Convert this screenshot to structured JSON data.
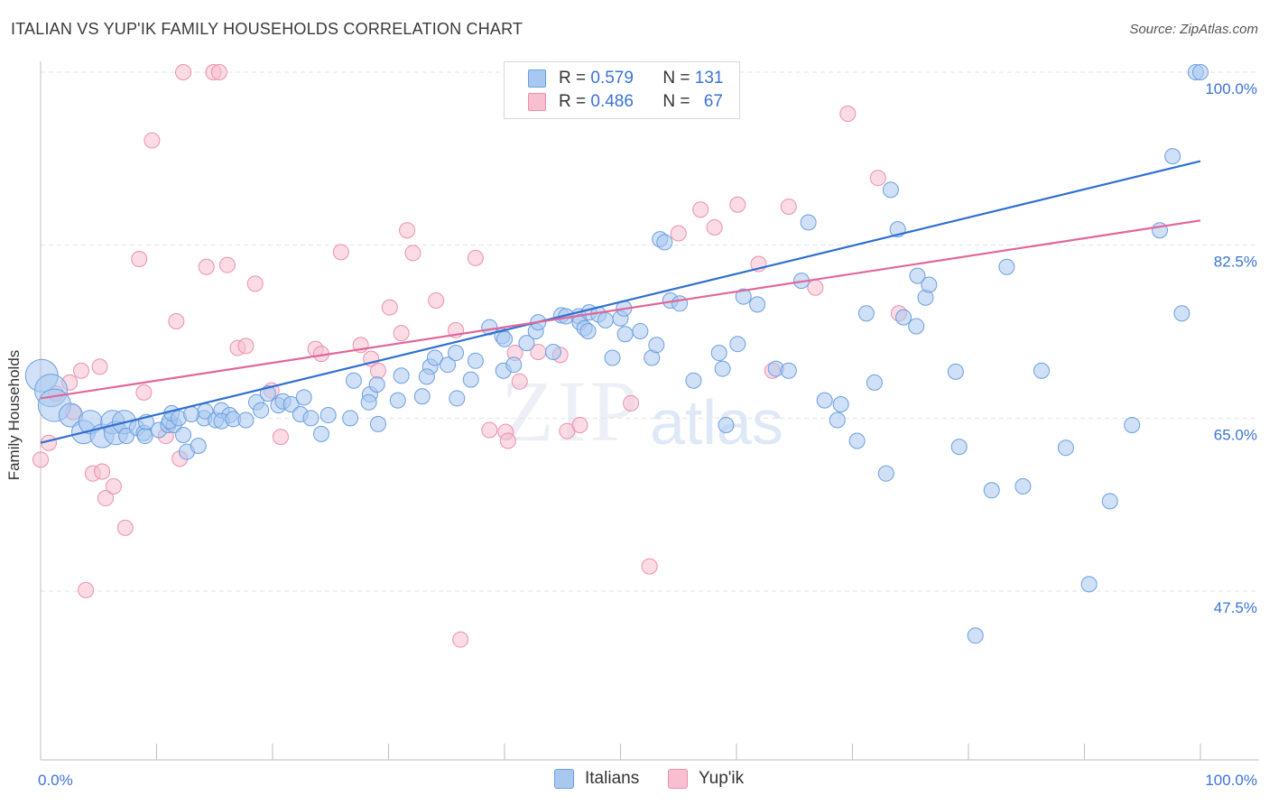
{
  "title": "ITALIAN VS YUP'IK FAMILY HOUSEHOLDS CORRELATION CHART",
  "source": "Source: ZipAtlas.com",
  "watermark": {
    "zip": "ZIP",
    "atlas": "atlas"
  },
  "legend": {
    "italians": {
      "r_label": "R =",
      "r_value": "0.579",
      "n_label": "N =",
      "n_value": "131"
    },
    "yupik": {
      "r_label": "R =",
      "r_value": "0.486",
      "n_label": "N =",
      "n_value": "67"
    }
  },
  "bottom_legend": {
    "italians": "Italians",
    "yupik": "Yup'ik"
  },
  "colors": {
    "italians_fill": "#a9c8f0",
    "italians_stroke": "#6a9fe0",
    "italians_line": "#2f6fd0",
    "yupik_fill": "#f7bfd0",
    "yupik_stroke": "#ec8fae",
    "yupik_line": "#e0679a",
    "tick_label": "#3b73d6",
    "grid": "#e3e3e3"
  },
  "chart_data": {
    "type": "scatter",
    "title": "ITALIAN VS YUP'IK FAMILY HOUSEHOLDS CORRELATION CHART",
    "xlabel": "",
    "ylabel": "Family Households",
    "xlim": [
      0,
      100
    ],
    "ylim": [
      32.5,
      102.5
    ],
    "x_tick_labels": [
      "0.0%",
      "100.0%"
    ],
    "y_ticks": [
      47.5,
      65.0,
      82.5,
      100.0
    ],
    "y_tick_labels": [
      "47.5%",
      "65.0%",
      "82.5%",
      "100.0%"
    ],
    "grid": true,
    "legend_position": "top-center",
    "series": [
      {
        "name": "Italians",
        "trend": {
          "x": [
            0,
            100
          ],
          "y": [
            62.5,
            91.0
          ]
        },
        "points": [
          [
            0.1,
            69.3
          ],
          [
            0.9,
            67.8
          ],
          [
            1.2,
            66.3
          ],
          [
            2.6,
            65.3
          ],
          [
            3.7,
            63.6
          ],
          [
            4.3,
            64.6
          ],
          [
            5.3,
            63.2
          ],
          [
            6.2,
            64.6
          ],
          [
            6.5,
            63.5
          ],
          [
            7.2,
            64.6
          ],
          [
            7.4,
            63.2
          ],
          [
            8.3,
            64.0
          ],
          [
            8.9,
            63.5
          ],
          [
            9.0,
            63.2
          ],
          [
            9.1,
            64.6
          ],
          [
            10.2,
            63.8
          ],
          [
            11.0,
            64.3
          ],
          [
            11.5,
            64.3
          ],
          [
            12.3,
            63.3
          ],
          [
            12.6,
            61.6
          ],
          [
            11.1,
            64.7
          ],
          [
            11.3,
            65.5
          ],
          [
            14.1,
            65.0
          ],
          [
            14.2,
            65.7
          ],
          [
            11.9,
            65.0
          ],
          [
            13.0,
            65.4
          ],
          [
            13.6,
            62.2
          ],
          [
            15.1,
            64.8
          ],
          [
            15.6,
            65.8
          ],
          [
            16.3,
            65.3
          ],
          [
            15.6,
            64.7
          ],
          [
            16.6,
            64.9
          ],
          [
            17.7,
            64.8
          ],
          [
            18.6,
            66.6
          ],
          [
            19.0,
            65.8
          ],
          [
            19.6,
            67.5
          ],
          [
            20.5,
            66.3
          ],
          [
            20.9,
            66.7
          ],
          [
            21.6,
            66.4
          ],
          [
            22.4,
            65.4
          ],
          [
            22.7,
            67.1
          ],
          [
            23.3,
            65.0
          ],
          [
            24.2,
            63.4
          ],
          [
            24.8,
            65.3
          ],
          [
            26.7,
            65.0
          ],
          [
            27.0,
            68.8
          ],
          [
            28.4,
            67.4
          ],
          [
            29.0,
            68.4
          ],
          [
            28.3,
            66.6
          ],
          [
            29.1,
            64.4
          ],
          [
            30.8,
            66.8
          ],
          [
            31.1,
            69.3
          ],
          [
            32.9,
            67.2
          ],
          [
            33.6,
            70.2
          ],
          [
            33.3,
            69.2
          ],
          [
            34.0,
            71.1
          ],
          [
            35.1,
            70.4
          ],
          [
            35.8,
            71.6
          ],
          [
            35.9,
            67.0
          ],
          [
            37.1,
            68.9
          ],
          [
            37.5,
            70.8
          ],
          [
            38.7,
            74.2
          ],
          [
            39.8,
            73.3
          ],
          [
            40.0,
            73.0
          ],
          [
            39.9,
            69.8
          ],
          [
            40.8,
            70.4
          ],
          [
            41.9,
            72.6
          ],
          [
            42.7,
            73.8
          ],
          [
            42.9,
            74.7
          ],
          [
            44.2,
            71.7
          ],
          [
            44.9,
            75.4
          ],
          [
            45.3,
            75.3
          ],
          [
            46.4,
            75.3
          ],
          [
            46.5,
            74.7
          ],
          [
            46.9,
            74.1
          ],
          [
            47.2,
            73.8
          ],
          [
            47.3,
            75.7
          ],
          [
            48.1,
            75.5
          ],
          [
            48.7,
            74.9
          ],
          [
            49.3,
            71.1
          ],
          [
            50.0,
            75.1
          ],
          [
            50.3,
            76.1
          ],
          [
            50.4,
            73.5
          ],
          [
            51.7,
            73.8
          ],
          [
            52.7,
            71.1
          ],
          [
            53.1,
            72.4
          ],
          [
            53.4,
            83.1
          ],
          [
            53.8,
            82.8
          ],
          [
            54.3,
            76.9
          ],
          [
            55.1,
            76.6
          ],
          [
            56.3,
            68.8
          ],
          [
            58.5,
            71.6
          ],
          [
            58.8,
            70.0
          ],
          [
            59.1,
            64.3
          ],
          [
            60.1,
            72.5
          ],
          [
            60.6,
            77.3
          ],
          [
            61.8,
            76.5
          ],
          [
            63.4,
            70.0
          ],
          [
            64.5,
            69.8
          ],
          [
            65.6,
            78.9
          ],
          [
            66.2,
            84.8
          ],
          [
            67.6,
            66.8
          ],
          [
            68.7,
            64.8
          ],
          [
            69.0,
            66.4
          ],
          [
            70.4,
            62.7
          ],
          [
            71.2,
            75.6
          ],
          [
            71.9,
            68.6
          ],
          [
            72.9,
            59.4
          ],
          [
            73.3,
            88.1
          ],
          [
            73.9,
            84.1
          ],
          [
            74.4,
            75.2
          ],
          [
            75.5,
            74.3
          ],
          [
            75.6,
            79.4
          ],
          [
            76.3,
            77.2
          ],
          [
            76.6,
            78.5
          ],
          [
            78.9,
            69.7
          ],
          [
            79.2,
            62.1
          ],
          [
            80.6,
            43.0
          ],
          [
            82.0,
            57.7
          ],
          [
            83.3,
            80.3
          ],
          [
            84.7,
            58.1
          ],
          [
            86.3,
            69.8
          ],
          [
            88.4,
            62.0
          ],
          [
            90.4,
            48.2
          ],
          [
            92.2,
            56.6
          ],
          [
            94.1,
            64.3
          ],
          [
            96.5,
            84.0
          ],
          [
            97.6,
            91.5
          ],
          [
            98.4,
            75.6
          ],
          [
            99.6,
            100.0
          ],
          [
            100.0,
            100.0
          ]
        ]
      },
      {
        "name": "Yup'ik",
        "trend": {
          "x": [
            0,
            100
          ],
          "y": [
            67.0,
            85.0
          ]
        },
        "points": [
          [
            0.0,
            60.8
          ],
          [
            0.7,
            62.5
          ],
          [
            1.3,
            67.5
          ],
          [
            2.5,
            68.6
          ],
          [
            2.8,
            65.6
          ],
          [
            3.5,
            69.8
          ],
          [
            3.9,
            47.6
          ],
          [
            4.5,
            59.4
          ],
          [
            5.1,
            70.2
          ],
          [
            5.3,
            59.6
          ],
          [
            5.6,
            56.9
          ],
          [
            6.3,
            58.1
          ],
          [
            7.3,
            53.9
          ],
          [
            8.5,
            81.1
          ],
          [
            8.9,
            67.6
          ],
          [
            9.6,
            93.1
          ],
          [
            10.8,
            63.2
          ],
          [
            11.7,
            74.8
          ],
          [
            12.0,
            60.9
          ],
          [
            12.3,
            100.0
          ],
          [
            14.3,
            80.3
          ],
          [
            14.9,
            100.0
          ],
          [
            15.4,
            100.0
          ],
          [
            16.1,
            80.5
          ],
          [
            17.0,
            72.1
          ],
          [
            17.7,
            72.3
          ],
          [
            18.5,
            78.6
          ],
          [
            19.9,
            67.8
          ],
          [
            20.7,
            63.1
          ],
          [
            23.7,
            72.0
          ],
          [
            24.2,
            71.5
          ],
          [
            25.9,
            81.8
          ],
          [
            27.6,
            72.4
          ],
          [
            28.5,
            71.0
          ],
          [
            29.1,
            69.8
          ],
          [
            30.1,
            76.2
          ],
          [
            31.1,
            73.6
          ],
          [
            31.6,
            84.0
          ],
          [
            32.1,
            81.7
          ],
          [
            34.1,
            76.9
          ],
          [
            35.8,
            73.9
          ],
          [
            36.2,
            42.6
          ],
          [
            37.5,
            81.2
          ],
          [
            38.7,
            63.8
          ],
          [
            40.1,
            63.6
          ],
          [
            40.3,
            62.7
          ],
          [
            40.9,
            71.6
          ],
          [
            41.3,
            68.7
          ],
          [
            42.9,
            71.7
          ],
          [
            44.8,
            71.4
          ],
          [
            45.4,
            63.7
          ],
          [
            46.5,
            64.3
          ],
          [
            48.2,
            98.1
          ],
          [
            50.9,
            66.5
          ],
          [
            52.5,
            50.0
          ],
          [
            53.8,
            100.0
          ],
          [
            55.0,
            83.7
          ],
          [
            56.9,
            86.1
          ],
          [
            58.1,
            84.3
          ],
          [
            60.1,
            86.6
          ],
          [
            61.9,
            80.6
          ],
          [
            63.1,
            69.8
          ],
          [
            64.5,
            86.4
          ],
          [
            66.8,
            78.2
          ],
          [
            69.6,
            95.8
          ],
          [
            72.2,
            89.3
          ],
          [
            74.0,
            75.6
          ]
        ]
      }
    ]
  }
}
